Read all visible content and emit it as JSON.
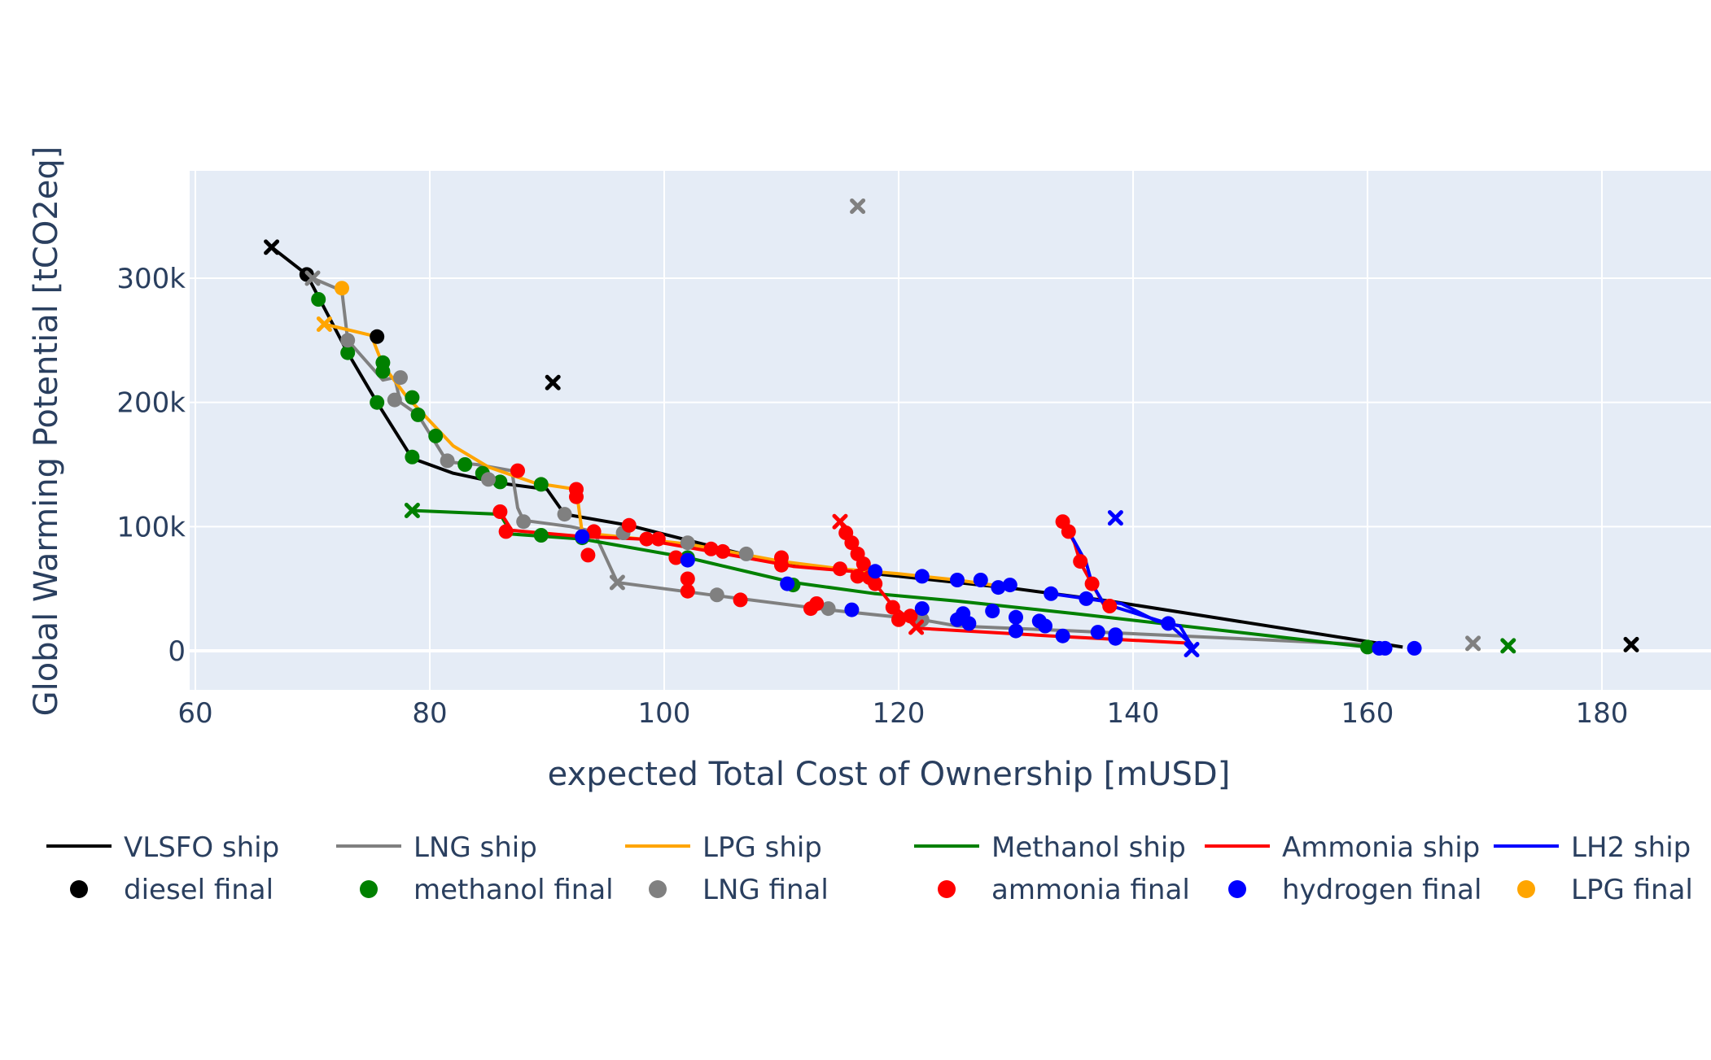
{
  "chart_data": {
    "type": "line",
    "title": "",
    "xlabel": "expected Total Cost of Ownership [mUSD]",
    "ylabel": "Global Warming Potential [tCO2eq]",
    "xlim": [
      60,
      188
    ],
    "ylim": [
      -28000,
      388000
    ],
    "x_ticks": [
      60,
      80,
      100,
      120,
      140,
      160,
      180
    ],
    "y_ticks": [
      0,
      100000,
      200000,
      300000
    ],
    "x_tick_labels": [
      "60",
      "80",
      "100",
      "120",
      "140",
      "160",
      "180"
    ],
    "y_tick_labels": [
      "0",
      "100k",
      "200k",
      "300k"
    ],
    "grid": true,
    "legend_position": "bottom",
    "colors": {
      "plot_bg": "#e5ecf6",
      "grid": "#ffffff",
      "axis_text": "#2a3f5f",
      "VLSFO": "#000000",
      "LNG": "#808080",
      "LPG": "#ffa500",
      "Methanol": "#008000",
      "Ammonia": "#ff0000",
      "LH2": "#0000ff"
    },
    "series": [
      {
        "name": "VLSFO ship",
        "color": "#000000",
        "points": [
          [
            66.5,
            325000
          ],
          [
            69.5,
            303000
          ],
          [
            73,
            240000
          ],
          [
            75.5,
            200000
          ],
          [
            78.5,
            155000
          ],
          [
            82,
            143000
          ],
          [
            86,
            135000
          ],
          [
            90,
            130000
          ],
          [
            91.5,
            110000
          ],
          [
            97,
            101000
          ],
          [
            110,
            70000
          ],
          [
            130,
            50000
          ],
          [
            138,
            40000
          ],
          [
            163,
            3000
          ]
        ],
        "start": [
          66.5,
          325000
        ],
        "standalone": [
          90.5,
          216000
        ]
      },
      {
        "name": "LNG ship",
        "color": "#808080",
        "points": [
          [
            70,
            300000
          ],
          [
            72.5,
            290000
          ],
          [
            73,
            250000
          ],
          [
            76,
            218000
          ],
          [
            77,
            220000
          ],
          [
            77.5,
            200000
          ],
          [
            79,
            190000
          ],
          [
            81.5,
            152000
          ],
          [
            84,
            150000
          ],
          [
            87,
            145000
          ],
          [
            87.5,
            115000
          ],
          [
            88,
            105000
          ],
          [
            92,
            100000
          ],
          [
            94,
            96000
          ],
          [
            96,
            55000
          ],
          [
            104,
            45000
          ],
          [
            114,
            33000
          ],
          [
            122,
            25000
          ],
          [
            125,
            20000
          ],
          [
            135,
            16000
          ],
          [
            160,
            5000
          ]
        ],
        "start": [
          70,
          300000
        ],
        "standalone": [
          116.5,
          358000
        ],
        "end_x": [
          169,
          6000
        ]
      },
      {
        "name": "LPG ship",
        "color": "#ffa500",
        "points": [
          [
            71,
            263000
          ],
          [
            75,
            254000
          ],
          [
            76,
            230000
          ],
          [
            78,
            205000
          ],
          [
            82,
            165000
          ],
          [
            85,
            148000
          ],
          [
            89,
            135000
          ],
          [
            92.5,
            130000
          ],
          [
            93,
            95000
          ],
          [
            96,
            92000
          ],
          [
            102,
            86000
          ],
          [
            110,
            72000
          ],
          [
            115,
            66000
          ],
          [
            120,
            62000
          ],
          [
            125,
            57000
          ],
          [
            128,
            53000
          ]
        ],
        "start": [
          71,
          263000
        ]
      },
      {
        "name": "Methanol ship",
        "color": "#008000",
        "points": [
          [
            78.5,
            113000
          ],
          [
            86,
            110000
          ],
          [
            87,
            94000
          ],
          [
            93,
            90000
          ],
          [
            102,
            75000
          ],
          [
            111,
            55000
          ],
          [
            118,
            46000
          ],
          [
            125,
            40000
          ],
          [
            135,
            30000
          ],
          [
            160,
            3000
          ]
        ],
        "start": [
          78.5,
          113000
        ],
        "end_x": [
          172,
          4000
        ]
      },
      {
        "name": "Ammonia ship",
        "color": "#ff0000",
        "points": [
          [
            86,
            112000
          ],
          [
            87,
            97000
          ],
          [
            93,
            92000
          ],
          [
            98,
            90000
          ],
          [
            104,
            80000
          ],
          [
            111,
            68000
          ],
          [
            116,
            64000
          ],
          [
            118,
            54000
          ],
          [
            119.5,
            36000
          ],
          [
            121,
            25000
          ],
          [
            122,
            18000
          ],
          [
            133,
            12000
          ],
          [
            145,
            6000
          ]
        ],
        "start": [
          121.5,
          19000
        ]
      },
      {
        "name": "Ammonia ship",
        "color": "#ff0000",
        "points": [
          [
            115,
            104000
          ],
          [
            115.5,
            95000
          ],
          [
            116,
            87000
          ],
          [
            116.5,
            78000
          ],
          [
            117,
            70000
          ],
          [
            116.5,
            64000
          ],
          [
            117.5,
            58000
          ],
          [
            118,
            52000
          ]
        ],
        "start": [
          115,
          104000
        ]
      },
      {
        "name": "Ammonia ship",
        "color": "#ff0000",
        "points": [
          [
            134,
            104000
          ],
          [
            134.5,
            96000
          ],
          [
            135,
            87000
          ],
          [
            135.5,
            71000
          ],
          [
            136.5,
            54000
          ],
          [
            137.5,
            37000
          ],
          [
            138,
            35000
          ]
        ],
        "start": [
          134,
          104000
        ]
      },
      {
        "name": "LH2 ship",
        "color": "#0000ff",
        "points": [
          [
            134,
            104000
          ],
          [
            135,
            88000
          ],
          [
            136,
            71000
          ],
          [
            136.5,
            54000
          ],
          [
            137.5,
            38000
          ],
          [
            143,
            22000
          ],
          [
            145,
            5000
          ],
          [
            145,
            2000
          ]
        ],
        "start": [
          145,
          1000
        ],
        "standalone": [
          138.5,
          107000
        ]
      },
      {
        "name": "LH2 ship",
        "color": "#0000ff",
        "points": [
          [
            133,
            46000
          ],
          [
            136,
            42000
          ],
          [
            139,
            38000
          ],
          [
            142,
            24000
          ],
          [
            144,
            20000
          ],
          [
            145,
            4000
          ]
        ]
      }
    ],
    "markers": [
      {
        "name": "diesel final",
        "color": "#000000",
        "points": [
          [
            69.5,
            303000
          ],
          [
            75.5,
            253000
          ]
        ],
        "standalone_x": [
          [
            66.5,
            325000
          ],
          [
            90.5,
            216000
          ],
          [
            182.5,
            5000
          ]
        ]
      },
      {
        "name": "methanol final",
        "color": "#008000",
        "points": [
          [
            70.5,
            283000
          ],
          [
            73,
            240000
          ],
          [
            75.5,
            200000
          ],
          [
            76,
            232000
          ],
          [
            76,
            225000
          ],
          [
            78.5,
            204000
          ],
          [
            79,
            190000
          ],
          [
            80.5,
            173000
          ],
          [
            78.5,
            156000
          ],
          [
            83,
            150000
          ],
          [
            84.5,
            143000
          ],
          [
            86,
            136000
          ],
          [
            89.5,
            134000
          ],
          [
            89.5,
            93000
          ],
          [
            93,
            91000
          ],
          [
            102,
            75000
          ],
          [
            111,
            53000
          ],
          [
            160,
            3000
          ]
        ],
        "standalone_x": [
          [
            78.5,
            113000
          ],
          [
            172,
            4000
          ]
        ]
      },
      {
        "name": "LNG final",
        "color": "#808080",
        "points": [
          [
            73,
            250000
          ],
          [
            77.5,
            220000
          ],
          [
            77,
            202000
          ],
          [
            81.5,
            153000
          ],
          [
            85,
            138000
          ],
          [
            88,
            104000
          ],
          [
            91.5,
            110000
          ],
          [
            96.5,
            95000
          ],
          [
            102,
            87000
          ],
          [
            107,
            78000
          ],
          [
            104.5,
            45000
          ],
          [
            114,
            34000
          ],
          [
            122,
            25000
          ]
        ],
        "standalone_x": [
          [
            116.5,
            358000
          ],
          [
            70,
            300000
          ],
          [
            96,
            55000
          ],
          [
            169,
            6000
          ]
        ]
      },
      {
        "name": "ammonia final",
        "color": "#ff0000",
        "points": [
          [
            87.5,
            145000
          ],
          [
            92.5,
            130000
          ],
          [
            92.5,
            124000
          ],
          [
            86,
            112000
          ],
          [
            86.5,
            96000
          ],
          [
            97,
            101000
          ],
          [
            94,
            96000
          ],
          [
            98.5,
            90000
          ],
          [
            99.5,
            90000
          ],
          [
            93.5,
            77000
          ],
          [
            101,
            75000
          ],
          [
            102,
            58000
          ],
          [
            102,
            48000
          ],
          [
            104,
            82000
          ],
          [
            105,
            80000
          ],
          [
            106.5,
            41000
          ],
          [
            110,
            75000
          ],
          [
            110,
            69000
          ],
          [
            112.5,
            34000
          ],
          [
            113,
            38000
          ],
          [
            115,
            66000
          ],
          [
            115.5,
            95000
          ],
          [
            116,
            87000
          ],
          [
            116.5,
            78000
          ],
          [
            117,
            70000
          ],
          [
            116.5,
            60000
          ],
          [
            117.5,
            59000
          ],
          [
            118,
            54000
          ],
          [
            119.5,
            35000
          ],
          [
            120,
            25000
          ],
          [
            121,
            28000
          ],
          [
            134,
            104000
          ],
          [
            134.5,
            96000
          ],
          [
            135.5,
            72000
          ],
          [
            136.5,
            54000
          ],
          [
            138,
            36000
          ]
        ],
        "standalone_x": [
          [
            115,
            104000
          ],
          [
            121.5,
            19000
          ]
        ]
      },
      {
        "name": "hydrogen final",
        "color": "#0000ff",
        "points": [
          [
            93,
            92000
          ],
          [
            102,
            73000
          ],
          [
            110.5,
            54000
          ],
          [
            116,
            33000
          ],
          [
            118,
            64000
          ],
          [
            122,
            60000
          ],
          [
            125,
            57000
          ],
          [
            127,
            57000
          ],
          [
            128.5,
            51000
          ],
          [
            129.5,
            53000
          ],
          [
            122,
            34000
          ],
          [
            125,
            25000
          ],
          [
            125.5,
            30000
          ],
          [
            126,
            22000
          ],
          [
            128,
            32000
          ],
          [
            130,
            27000
          ],
          [
            130,
            16000
          ],
          [
            132,
            24000
          ],
          [
            132.5,
            20000
          ],
          [
            133,
            46000
          ],
          [
            134,
            12000
          ],
          [
            136,
            42000
          ],
          [
            137,
            15000
          ],
          [
            138.5,
            10000
          ],
          [
            138.5,
            13000
          ],
          [
            143,
            22000
          ],
          [
            161,
            2000
          ],
          [
            161.5,
            2000
          ],
          [
            164,
            2000
          ]
        ],
        "standalone_x": [
          [
            138.5,
            107000
          ],
          [
            145,
            1000
          ]
        ]
      },
      {
        "name": "LPG final",
        "color": "#ffa500",
        "points": [
          [
            72.5,
            292000
          ]
        ],
        "standalone_x": [
          [
            71,
            263000
          ]
        ]
      }
    ],
    "legend": {
      "lines": [
        {
          "label": "VLSFO ship",
          "color": "#000000"
        },
        {
          "label": "LNG ship",
          "color": "#808080"
        },
        {
          "label": "LPG ship",
          "color": "#ffa500"
        },
        {
          "label": "Methanol ship",
          "color": "#008000"
        },
        {
          "label": "Ammonia ship",
          "color": "#ff0000"
        },
        {
          "label": "LH2 ship",
          "color": "#0000ff"
        }
      ],
      "markers": [
        {
          "label": "diesel final",
          "color": "#000000"
        },
        {
          "label": "methanol final",
          "color": "#008000"
        },
        {
          "label": "LNG final",
          "color": "#808080"
        },
        {
          "label": "ammonia final",
          "color": "#ff0000"
        },
        {
          "label": "hydrogen final",
          "color": "#0000ff"
        },
        {
          "label": "LPG final",
          "color": "#ffa500"
        }
      ]
    }
  }
}
